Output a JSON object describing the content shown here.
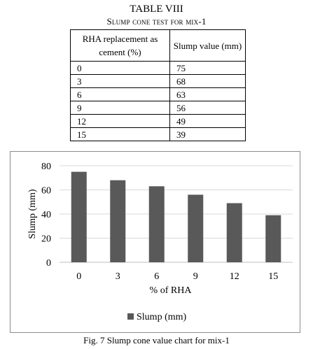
{
  "table": {
    "title": "TABLE VIII",
    "subtitle": "Slump cone test for mix-1",
    "headers": [
      "RHA replacement as cement (%)",
      "Slump value (mm)"
    ],
    "rows": [
      [
        "0",
        "75"
      ],
      [
        "3",
        "68"
      ],
      [
        "6",
        "63"
      ],
      [
        "9",
        "56"
      ],
      [
        "12",
        "49"
      ],
      [
        "15",
        "39"
      ]
    ]
  },
  "caption": "Fig. 7 Slump cone value chart for mix-1",
  "chart_data": {
    "type": "bar",
    "categories": [
      "0",
      "3",
      "6",
      "9",
      "12",
      "15"
    ],
    "series": [
      {
        "name": "Slump (mm)",
        "values": [
          75,
          68,
          63,
          56,
          49,
          39
        ]
      }
    ],
    "xlabel": "% of  RHA",
    "ylabel": "Slump (mm)",
    "ylim": [
      0,
      80
    ],
    "yticks": [
      0,
      20,
      40,
      60,
      80
    ],
    "grid": true,
    "legend": "bottom",
    "bar_color": "#595959",
    "grid_color": "#d9d9d9"
  }
}
